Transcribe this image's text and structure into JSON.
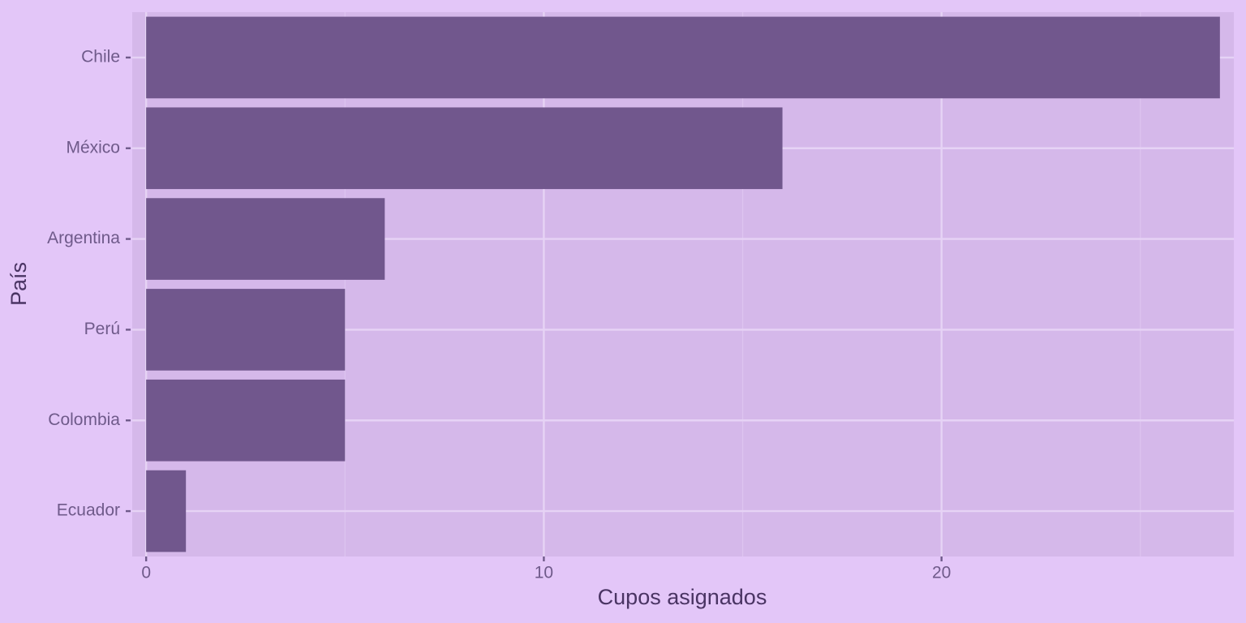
{
  "chart_data": {
    "type": "barh",
    "x_label": "Cupos asignados",
    "y_label": "País",
    "categories": [
      "Chile",
      "México",
      "Argentina",
      "Perú",
      "Colombia",
      "Ecuador"
    ],
    "values": [
      27,
      16,
      6,
      5,
      5,
      1
    ],
    "color": "#71578d",
    "xlim": [
      -0.35,
      27.35
    ],
    "xticks": [
      0,
      10,
      20
    ],
    "x_minor_grid": [
      5,
      15,
      25
    ],
    "grid": true
  }
}
